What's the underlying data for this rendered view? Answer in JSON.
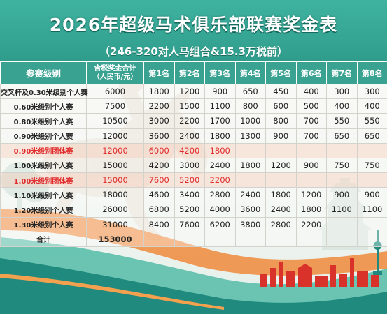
{
  "header": {
    "title": "2026年超级马术俱乐部联赛奖金表",
    "subtitle": "（246-320对人马组合&15.3万税前）"
  },
  "table": {
    "columns": {
      "level": "参赛级别",
      "total_line1": "含税奖金合计",
      "total_line2": "（人民币/元）",
      "ranks": [
        "第1名",
        "第2名",
        "第3名",
        "第4名",
        "第5名",
        "第6名",
        "第7名",
        "第8名"
      ]
    },
    "rows": [
      {
        "level": "交叉杆及0.30米级别个人赛",
        "total": "6000",
        "prizes": [
          "1800",
          "1200",
          "900",
          "650",
          "450",
          "400",
          "300",
          "300"
        ],
        "team": false
      },
      {
        "level": "0.60米级别个人赛",
        "total": "7500",
        "prizes": [
          "2200",
          "1500",
          "1100",
          "800",
          "600",
          "500",
          "400",
          "400"
        ],
        "team": false
      },
      {
        "level": "0.80米级别个人赛",
        "total": "10500",
        "prizes": [
          "3000",
          "2200",
          "1700",
          "1000",
          "800",
          "700",
          "550",
          "550"
        ],
        "team": false
      },
      {
        "level": "0.90米级别个人赛",
        "total": "12000",
        "prizes": [
          "3600",
          "2400",
          "1800",
          "1300",
          "900",
          "700",
          "650",
          "650"
        ],
        "team": false
      },
      {
        "level": "0.90米级别团体赛",
        "total": "12000",
        "prizes": [
          "6000",
          "4200",
          "1800",
          "",
          "",
          "",
          "",
          ""
        ],
        "team": true
      },
      {
        "level": "1.00米级别个人赛",
        "total": "15000",
        "prizes": [
          "4200",
          "3000",
          "2400",
          "1800",
          "1200",
          "900",
          "750",
          "750"
        ],
        "team": false
      },
      {
        "level": "1.00米级别团体赛",
        "total": "15000",
        "prizes": [
          "7600",
          "5200",
          "2200",
          "",
          "",
          "",
          "",
          ""
        ],
        "team": true
      },
      {
        "level": "1.10米级别个人赛",
        "total": "18000",
        "prizes": [
          "4600",
          "3400",
          "2800",
          "2400",
          "1800",
          "1200",
          "900",
          "900"
        ],
        "team": false
      },
      {
        "level": "1.20米级别个人赛",
        "total": "26000",
        "prizes": [
          "6800",
          "5200",
          "4000",
          "3600",
          "2400",
          "1800",
          "1100",
          "1100"
        ],
        "team": false
      },
      {
        "level": "1.30米级别个人赛",
        "total": "31000",
        "prizes": [
          "8400",
          "7600",
          "6200",
          "3800",
          "2800",
          "2200",
          "",
          ""
        ],
        "team": false
      }
    ],
    "sum_row": {
      "label": "合计",
      "total": "153000"
    }
  },
  "colors": {
    "header_bg": "#3aa291",
    "team_text": "#e02c2c",
    "team_bg": "#fad9ca",
    "body_bg": "#f6f7f1",
    "deco_orange": "#f08a3c",
    "deco_red": "#d8322a",
    "deco_teal": "#1f8a7d"
  }
}
